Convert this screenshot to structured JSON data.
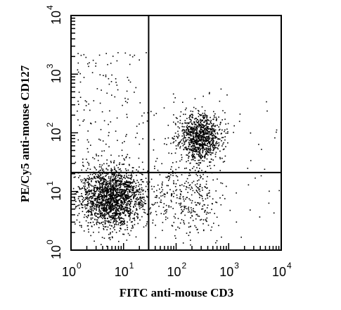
{
  "chart_data": {
    "type": "scatter",
    "title": "",
    "xlabel": "FITC anti-mouse CD3",
    "ylabel": "PE/Cy5 anti-mouse CD127",
    "xscale": "log",
    "yscale": "log",
    "xlim": [
      1,
      10000
    ],
    "ylim": [
      1,
      10000
    ],
    "x_ticks": [
      {
        "base": "10",
        "exp": "0",
        "value": 1
      },
      {
        "base": "10",
        "exp": "1",
        "value": 10
      },
      {
        "base": "10",
        "exp": "2",
        "value": 100
      },
      {
        "base": "10",
        "exp": "3",
        "value": 1000
      },
      {
        "base": "10",
        "exp": "4",
        "value": 10000
      }
    ],
    "y_ticks": [
      {
        "base": "10",
        "exp": "0",
        "value": 1
      },
      {
        "base": "10",
        "exp": "1",
        "value": 10
      },
      {
        "base": "10",
        "exp": "2",
        "value": 100
      },
      {
        "base": "10",
        "exp": "3",
        "value": 1000
      },
      {
        "base": "10",
        "exp": "4",
        "value": 10000
      }
    ],
    "quadrant_gates": {
      "x": 30,
      "y": 21
    },
    "grid": false,
    "legend": "none",
    "clusters": [
      {
        "center_x": 6,
        "center_y": 8,
        "approx_events": 1900
      },
      {
        "center_x": 280,
        "center_y": 85,
        "approx_events": 1000
      },
      {
        "center_x": 150,
        "center_y": 8,
        "approx_events": 320
      }
    ],
    "marker_color": "#000000"
  }
}
